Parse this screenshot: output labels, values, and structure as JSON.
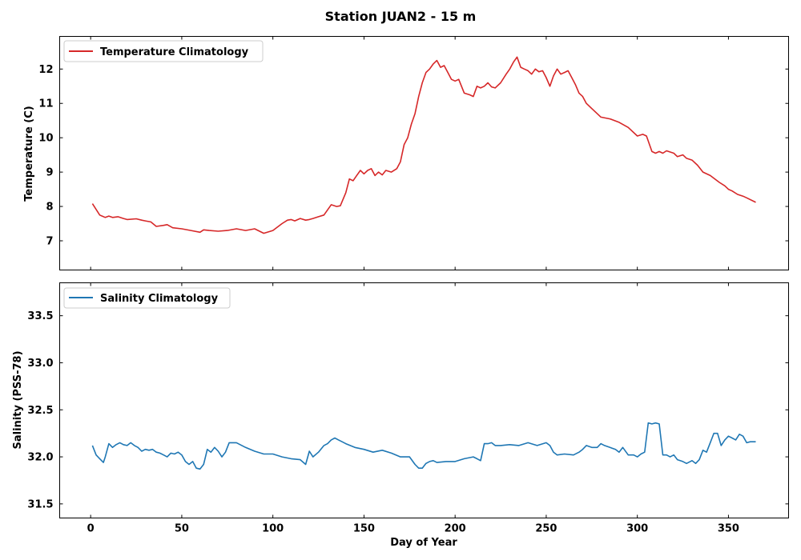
{
  "chart_data": [
    {
      "type": "line",
      "title": "Station JUAN2 - 15 m",
      "xlabel": "",
      "ylabel": "Temperature (C)",
      "xlim": [
        -17,
        383
      ],
      "ylim": [
        6.15,
        12.95
      ],
      "xticks": [
        0,
        50,
        100,
        150,
        200,
        250,
        300,
        350
      ],
      "yticks": [
        7,
        8,
        9,
        10,
        11,
        12
      ],
      "ytick_labels": [
        "7",
        "8",
        "9",
        "10",
        "11",
        "12"
      ],
      "legend_position": "upper-left",
      "grid": false,
      "series": [
        {
          "name": "Temperature Climatology",
          "color": "#d62728",
          "x": [
            1,
            5,
            8,
            10,
            12,
            15,
            18,
            20,
            25,
            28,
            30,
            33,
            36,
            40,
            42,
            45,
            50,
            55,
            60,
            62,
            65,
            70,
            75,
            80,
            85,
            90,
            95,
            100,
            105,
            108,
            110,
            112,
            115,
            118,
            120,
            122,
            125,
            128,
            130,
            132,
            135,
            137,
            140,
            142,
            144,
            146,
            148,
            150,
            152,
            154,
            156,
            158,
            160,
            162,
            165,
            168,
            170,
            172,
            174,
            176,
            178,
            180,
            182,
            184,
            186,
            188,
            190,
            192,
            194,
            196,
            198,
            200,
            202,
            205,
            208,
            210,
            212,
            214,
            216,
            218,
            220,
            222,
            225,
            228,
            230,
            232,
            234,
            236,
            238,
            240,
            242,
            244,
            246,
            248,
            250,
            252,
            254,
            256,
            258,
            260,
            262,
            264,
            266,
            268,
            270,
            272,
            275,
            278,
            280,
            285,
            290,
            295,
            300,
            303,
            305,
            308,
            310,
            312,
            314,
            316,
            320,
            322,
            325,
            327,
            330,
            333,
            336,
            340,
            345,
            348,
            350,
            352,
            355,
            358,
            360,
            365
          ],
          "values": [
            8.08,
            7.75,
            7.68,
            7.72,
            7.68,
            7.7,
            7.65,
            7.62,
            7.64,
            7.6,
            7.58,
            7.55,
            7.42,
            7.45,
            7.47,
            7.38,
            7.35,
            7.3,
            7.25,
            7.32,
            7.3,
            7.28,
            7.3,
            7.35,
            7.3,
            7.35,
            7.22,
            7.3,
            7.5,
            7.6,
            7.62,
            7.58,
            7.65,
            7.6,
            7.62,
            7.65,
            7.7,
            7.75,
            7.9,
            8.05,
            8.0,
            8.02,
            8.4,
            8.8,
            8.75,
            8.9,
            9.05,
            8.95,
            9.05,
            9.1,
            8.9,
            9.0,
            8.92,
            9.05,
            9.0,
            9.1,
            9.3,
            9.8,
            10.0,
            10.4,
            10.7,
            11.2,
            11.6,
            11.9,
            12.0,
            12.15,
            12.25,
            12.05,
            12.1,
            11.9,
            11.7,
            11.65,
            11.7,
            11.3,
            11.25,
            11.2,
            11.5,
            11.45,
            11.5,
            11.6,
            11.48,
            11.45,
            11.6,
            11.85,
            12.0,
            12.2,
            12.35,
            12.05,
            12.0,
            11.95,
            11.85,
            12.0,
            11.92,
            11.95,
            11.75,
            11.5,
            11.8,
            12.0,
            11.85,
            11.9,
            11.95,
            11.75,
            11.55,
            11.3,
            11.2,
            11.0,
            10.85,
            10.7,
            10.6,
            10.55,
            10.45,
            10.3,
            10.05,
            10.1,
            10.05,
            9.6,
            9.55,
            9.6,
            9.55,
            9.62,
            9.55,
            9.45,
            9.5,
            9.4,
            9.35,
            9.2,
            9.0,
            8.9,
            8.7,
            8.6,
            8.5,
            8.45,
            8.35,
            8.3,
            8.25,
            8.12
          ]
        }
      ]
    },
    {
      "type": "line",
      "title": "",
      "xlabel": "Day of Year",
      "ylabel": "Salinity (PSS-78)",
      "xlim": [
        -17,
        383
      ],
      "ylim": [
        31.35,
        33.85
      ],
      "xticks": [
        0,
        50,
        100,
        150,
        200,
        250,
        300,
        350
      ],
      "xtick_labels": [
        "0",
        "50",
        "100",
        "150",
        "200",
        "250",
        "300",
        "350"
      ],
      "yticks": [
        31.5,
        32.0,
        32.5,
        33.0,
        33.5
      ],
      "ytick_labels": [
        "31.5",
        "32.0",
        "32.5",
        "33.0",
        "33.5"
      ],
      "legend_position": "upper-left",
      "grid": false,
      "series": [
        {
          "name": "Salinity Climatology",
          "color": "#1f77b4",
          "x": [
            1,
            3,
            5,
            7,
            8,
            10,
            12,
            14,
            16,
            18,
            20,
            22,
            24,
            26,
            28,
            30,
            32,
            34,
            36,
            38,
            40,
            42,
            44,
            46,
            48,
            50,
            52,
            54,
            56,
            58,
            60,
            62,
            64,
            66,
            68,
            70,
            72,
            74,
            76,
            80,
            85,
            90,
            95,
            100,
            105,
            110,
            115,
            118,
            120,
            122,
            125,
            128,
            130,
            132,
            134,
            136,
            138,
            140,
            145,
            150,
            155,
            160,
            165,
            170,
            175,
            178,
            180,
            182,
            184,
            186,
            188,
            190,
            195,
            200,
            205,
            210,
            212,
            214,
            216,
            218,
            220,
            222,
            225,
            230,
            235,
            240,
            245,
            250,
            252,
            254,
            256,
            260,
            265,
            268,
            270,
            272,
            275,
            278,
            280,
            282,
            285,
            288,
            290,
            292,
            295,
            298,
            300,
            302,
            304,
            306,
            308,
            310,
            312,
            314,
            316,
            318,
            320,
            322,
            325,
            327,
            330,
            332,
            334,
            336,
            338,
            340,
            342,
            344,
            346,
            348,
            350,
            352,
            354,
            356,
            358,
            360,
            362,
            365
          ],
          "values": [
            32.12,
            32.02,
            31.98,
            31.94,
            32.0,
            32.14,
            32.1,
            32.13,
            32.15,
            32.13,
            32.12,
            32.15,
            32.12,
            32.1,
            32.06,
            32.08,
            32.07,
            32.08,
            32.05,
            32.04,
            32.02,
            32.0,
            32.04,
            32.03,
            32.05,
            32.02,
            31.95,
            31.92,
            31.95,
            31.88,
            31.87,
            31.92,
            32.08,
            32.05,
            32.1,
            32.06,
            32.0,
            32.05,
            32.15,
            32.15,
            32.1,
            32.06,
            32.03,
            32.03,
            32.0,
            31.98,
            31.97,
            31.92,
            32.06,
            32.0,
            32.05,
            32.12,
            32.14,
            32.18,
            32.2,
            32.18,
            32.16,
            32.14,
            32.1,
            32.08,
            32.05,
            32.07,
            32.04,
            32.0,
            32.0,
            31.92,
            31.88,
            31.88,
            31.93,
            31.95,
            31.96,
            31.94,
            31.95,
            31.95,
            31.98,
            32.0,
            31.98,
            31.96,
            32.14,
            32.14,
            32.15,
            32.12,
            32.12,
            32.13,
            32.12,
            32.15,
            32.12,
            32.15,
            32.12,
            32.05,
            32.02,
            32.03,
            32.02,
            32.05,
            32.08,
            32.12,
            32.1,
            32.1,
            32.14,
            32.12,
            32.1,
            32.08,
            32.05,
            32.1,
            32.02,
            32.02,
            32.0,
            32.03,
            32.05,
            32.36,
            32.35,
            32.36,
            32.35,
            32.02,
            32.02,
            32.0,
            32.02,
            31.97,
            31.95,
            31.93,
            31.96,
            31.93,
            31.97,
            32.07,
            32.05,
            32.15,
            32.25,
            32.25,
            32.12,
            32.18,
            32.22,
            32.2,
            32.18,
            32.24,
            32.22,
            32.15,
            32.16,
            32.16
          ]
        }
      ]
    }
  ]
}
